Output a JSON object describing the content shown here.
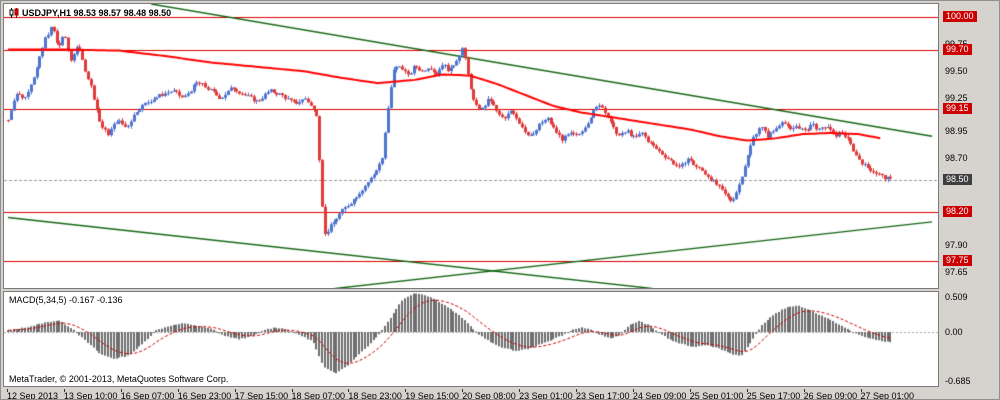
{
  "header": {
    "symbol_line": "USDJPY,H1 98.53 98.57 98.48 98.50"
  },
  "macd_header": "MACD(5,34,5) -0.167 -0.136",
  "footer": {
    "copyright": "MetaTrader, © 2001-2013, MetaQuotes Software Corp."
  },
  "price_axis": {
    "regular": [
      "99.75",
      "99.50",
      "99.25",
      "98.95",
      "98.70",
      "97.90",
      "97.65"
    ],
    "levels": [
      {
        "value": "100.00",
        "price": 100.0,
        "style": "red"
      },
      {
        "value": "99.70",
        "price": 99.7,
        "style": "red"
      },
      {
        "value": "99.15",
        "price": 99.15,
        "style": "red"
      },
      {
        "value": "98.50",
        "price": 98.5,
        "style": "dark"
      },
      {
        "value": "98.20",
        "price": 98.2,
        "style": "red"
      },
      {
        "value": "97.75",
        "price": 97.75,
        "style": "red"
      }
    ]
  },
  "time_axis": {
    "labels": [
      "12 Sep 2013",
      "13 Sep 10:00",
      "16 Sep 07:00",
      "16 Sep 23:00",
      "17 Sep 15:00",
      "18 Sep 07:00",
      "18 Sep 23:00",
      "19 Sep 15:00",
      "20 Sep 08:00",
      "23 Sep 01:00",
      "23 Sep 17:00",
      "24 Sep 09:00",
      "25 Sep 01:00",
      "25 Sep 17:00",
      "26 Sep 09:00",
      "27 Sep 01:00"
    ]
  },
  "macd_axis": {
    "top": "0.509",
    "zero": "0.00",
    "bottom": "-0.685"
  },
  "colors": {
    "bull": "#4f74d0",
    "bear": "#e03a3a",
    "ma": "#ff0000",
    "trend": "#156615",
    "level": "#e00000",
    "bid_line": "#999999",
    "hist": "#6e6e6e",
    "signal": "#cc0000",
    "red_box": "#cc0000",
    "dark_box": "#3f3f3f",
    "frame": "#d6d3ce"
  },
  "chart_data": {
    "type": "candlestick",
    "symbol": "USDJPY",
    "timeframe": "H1",
    "title": "USDJPY,H1",
    "ohlc_current": {
      "open": 98.53,
      "high": 98.57,
      "low": 98.48,
      "close": 98.5
    },
    "bid": 98.5,
    "price_range": [
      97.5,
      100.12
    ],
    "candle_count": 310,
    "frac_span": 0.955,
    "hlines": [
      100.0,
      99.7,
      99.15,
      98.2,
      97.75
    ],
    "close_path_anchors": [
      [
        0.0,
        99.05
      ],
      [
        0.008,
        99.3
      ],
      [
        0.018,
        99.25
      ],
      [
        0.03,
        99.5
      ],
      [
        0.04,
        99.8
      ],
      [
        0.048,
        99.92
      ],
      [
        0.054,
        99.7
      ],
      [
        0.06,
        99.85
      ],
      [
        0.068,
        99.6
      ],
      [
        0.075,
        99.75
      ],
      [
        0.082,
        99.55
      ],
      [
        0.09,
        99.35
      ],
      [
        0.1,
        99.0
      ],
      [
        0.108,
        98.92
      ],
      [
        0.118,
        99.05
      ],
      [
        0.128,
        98.98
      ],
      [
        0.14,
        99.15
      ],
      [
        0.152,
        99.22
      ],
      [
        0.165,
        99.28
      ],
      [
        0.178,
        99.32
      ],
      [
        0.19,
        99.25
      ],
      [
        0.205,
        99.4
      ],
      [
        0.218,
        99.33
      ],
      [
        0.23,
        99.25
      ],
      [
        0.243,
        99.35
      ],
      [
        0.256,
        99.28
      ],
      [
        0.27,
        99.22
      ],
      [
        0.283,
        99.32
      ],
      [
        0.296,
        99.28
      ],
      [
        0.31,
        99.2
      ],
      [
        0.322,
        99.25
      ],
      [
        0.334,
        99.1
      ],
      [
        0.342,
        97.98
      ],
      [
        0.35,
        98.08
      ],
      [
        0.36,
        98.2
      ],
      [
        0.372,
        98.3
      ],
      [
        0.384,
        98.42
      ],
      [
        0.396,
        98.55
      ],
      [
        0.405,
        98.7
      ],
      [
        0.411,
        99.15
      ],
      [
        0.417,
        99.52
      ],
      [
        0.425,
        99.55
      ],
      [
        0.433,
        99.45
      ],
      [
        0.44,
        99.55
      ],
      [
        0.448,
        99.5
      ],
      [
        0.456,
        99.55
      ],
      [
        0.463,
        99.47
      ],
      [
        0.47,
        99.57
      ],
      [
        0.478,
        99.5
      ],
      [
        0.486,
        99.62
      ],
      [
        0.492,
        99.72
      ],
      [
        0.498,
        99.45
      ],
      [
        0.505,
        99.18
      ],
      [
        0.513,
        99.15
      ],
      [
        0.521,
        99.25
      ],
      [
        0.529,
        99.12
      ],
      [
        0.537,
        99.05
      ],
      [
        0.545,
        99.15
      ],
      [
        0.553,
        99.03
      ],
      [
        0.561,
        98.93
      ],
      [
        0.568,
        98.9
      ],
      [
        0.576,
        99.02
      ],
      [
        0.584,
        99.06
      ],
      [
        0.592,
        98.95
      ],
      [
        0.6,
        98.87
      ],
      [
        0.608,
        98.92
      ],
      [
        0.616,
        98.9
      ],
      [
        0.625,
        99.0
      ],
      [
        0.633,
        99.12
      ],
      [
        0.64,
        99.2
      ],
      [
        0.647,
        99.12
      ],
      [
        0.654,
        98.98
      ],
      [
        0.662,
        98.9
      ],
      [
        0.67,
        98.95
      ],
      [
        0.678,
        98.88
      ],
      [
        0.686,
        98.93
      ],
      [
        0.694,
        98.84
      ],
      [
        0.702,
        98.78
      ],
      [
        0.71,
        98.72
      ],
      [
        0.719,
        98.66
      ],
      [
        0.727,
        98.6
      ],
      [
        0.735,
        98.7
      ],
      [
        0.743,
        98.63
      ],
      [
        0.751,
        98.58
      ],
      [
        0.759,
        98.52
      ],
      [
        0.767,
        98.45
      ],
      [
        0.775,
        98.37
      ],
      [
        0.783,
        98.3
      ],
      [
        0.79,
        98.42
      ],
      [
        0.798,
        98.65
      ],
      [
        0.806,
        98.88
      ],
      [
        0.814,
        99.0
      ],
      [
        0.822,
        98.9
      ],
      [
        0.83,
        98.96
      ],
      [
        0.838,
        99.05
      ],
      [
        0.846,
        98.95
      ],
      [
        0.854,
        99.0
      ],
      [
        0.862,
        98.94
      ],
      [
        0.87,
        99.02
      ],
      [
        0.878,
        98.95
      ],
      [
        0.886,
        99.0
      ],
      [
        0.894,
        98.9
      ],
      [
        0.902,
        98.94
      ],
      [
        0.91,
        98.85
      ],
      [
        0.918,
        98.72
      ],
      [
        0.928,
        98.62
      ],
      [
        0.938,
        98.57
      ],
      [
        0.948,
        98.52
      ],
      [
        0.955,
        98.5
      ]
    ],
    "ma_line_anchors": [
      [
        0.0,
        99.7
      ],
      [
        0.06,
        99.7
      ],
      [
        0.12,
        99.69
      ],
      [
        0.17,
        99.64
      ],
      [
        0.22,
        99.58
      ],
      [
        0.27,
        99.54
      ],
      [
        0.32,
        99.5
      ],
      [
        0.36,
        99.44
      ],
      [
        0.4,
        99.39
      ],
      [
        0.44,
        99.42
      ],
      [
        0.47,
        99.47
      ],
      [
        0.5,
        99.46
      ],
      [
        0.53,
        99.38
      ],
      [
        0.56,
        99.28
      ],
      [
        0.59,
        99.18
      ],
      [
        0.62,
        99.12
      ],
      [
        0.65,
        99.08
      ],
      [
        0.68,
        99.04
      ],
      [
        0.71,
        99.0
      ],
      [
        0.74,
        98.96
      ],
      [
        0.77,
        98.9
      ],
      [
        0.8,
        98.86
      ],
      [
        0.83,
        98.88
      ],
      [
        0.86,
        98.92
      ],
      [
        0.89,
        98.93
      ],
      [
        0.92,
        98.92
      ],
      [
        0.945,
        98.88
      ]
    ],
    "trendlines": [
      [
        [
          0.155,
          100.12
        ],
        [
          1.0,
          98.9
        ]
      ],
      [
        [
          0.0,
          98.15
        ],
        [
          0.703,
          97.49
        ]
      ],
      [
        [
          0.348,
          97.49
        ],
        [
          1.0,
          98.11
        ]
      ]
    ],
    "macd": {
      "label": "MACD(5,34,5) -0.167 -0.136",
      "params": [
        5,
        34,
        5
      ],
      "values_current": [
        -0.167,
        -0.136
      ],
      "range": [
        -0.685,
        0.509
      ],
      "anchors": [
        [
          0.0,
          0.02
        ],
        [
          0.02,
          0.06
        ],
        [
          0.04,
          0.12
        ],
        [
          0.055,
          0.15
        ],
        [
          0.07,
          0.04
        ],
        [
          0.085,
          -0.12
        ],
        [
          0.1,
          -0.28
        ],
        [
          0.115,
          -0.34
        ],
        [
          0.13,
          -0.3
        ],
        [
          0.145,
          -0.16
        ],
        [
          0.16,
          0.02
        ],
        [
          0.175,
          0.08
        ],
        [
          0.19,
          0.11
        ],
        [
          0.205,
          0.08
        ],
        [
          0.22,
          0.04
        ],
        [
          0.235,
          -0.05
        ],
        [
          0.25,
          -0.09
        ],
        [
          0.265,
          -0.05
        ],
        [
          0.278,
          0.03
        ],
        [
          0.29,
          0.06
        ],
        [
          0.3,
          0.04
        ],
        [
          0.315,
          -0.03
        ],
        [
          0.33,
          -0.12
        ],
        [
          0.342,
          -0.45
        ],
        [
          0.355,
          -0.52
        ],
        [
          0.368,
          -0.42
        ],
        [
          0.38,
          -0.28
        ],
        [
          0.392,
          -0.15
        ],
        [
          0.402,
          -0.02
        ],
        [
          0.414,
          0.18
        ],
        [
          0.426,
          0.4
        ],
        [
          0.44,
          0.5
        ],
        [
          0.452,
          0.47
        ],
        [
          0.465,
          0.4
        ],
        [
          0.478,
          0.3
        ],
        [
          0.49,
          0.2
        ],
        [
          0.5,
          0.08
        ],
        [
          0.512,
          -0.05
        ],
        [
          0.524,
          -0.14
        ],
        [
          0.536,
          -0.2
        ],
        [
          0.55,
          -0.24
        ],
        [
          0.564,
          -0.21
        ],
        [
          0.578,
          -0.15
        ],
        [
          0.59,
          -0.09
        ],
        [
          0.602,
          -0.03
        ],
        [
          0.612,
          0.03
        ],
        [
          0.622,
          0.06
        ],
        [
          0.632,
          0.02
        ],
        [
          0.642,
          -0.04
        ],
        [
          0.652,
          -0.08
        ],
        [
          0.662,
          -0.04
        ],
        [
          0.673,
          0.09
        ],
        [
          0.683,
          0.14
        ],
        [
          0.693,
          0.09
        ],
        [
          0.703,
          0.01
        ],
        [
          0.715,
          -0.09
        ],
        [
          0.728,
          -0.15
        ],
        [
          0.742,
          -0.19
        ],
        [
          0.756,
          -0.16
        ],
        [
          0.77,
          -0.21
        ],
        [
          0.784,
          -0.28
        ],
        [
          0.794,
          -0.3
        ],
        [
          0.804,
          -0.14
        ],
        [
          0.814,
          0.06
        ],
        [
          0.826,
          0.2
        ],
        [
          0.84,
          0.3
        ],
        [
          0.854,
          0.34
        ],
        [
          0.868,
          0.28
        ],
        [
          0.882,
          0.2
        ],
        [
          0.896,
          0.12
        ],
        [
          0.908,
          0.04
        ],
        [
          0.92,
          -0.03
        ],
        [
          0.932,
          -0.08
        ],
        [
          0.944,
          -0.11
        ],
        [
          0.955,
          -0.13
        ]
      ]
    }
  }
}
